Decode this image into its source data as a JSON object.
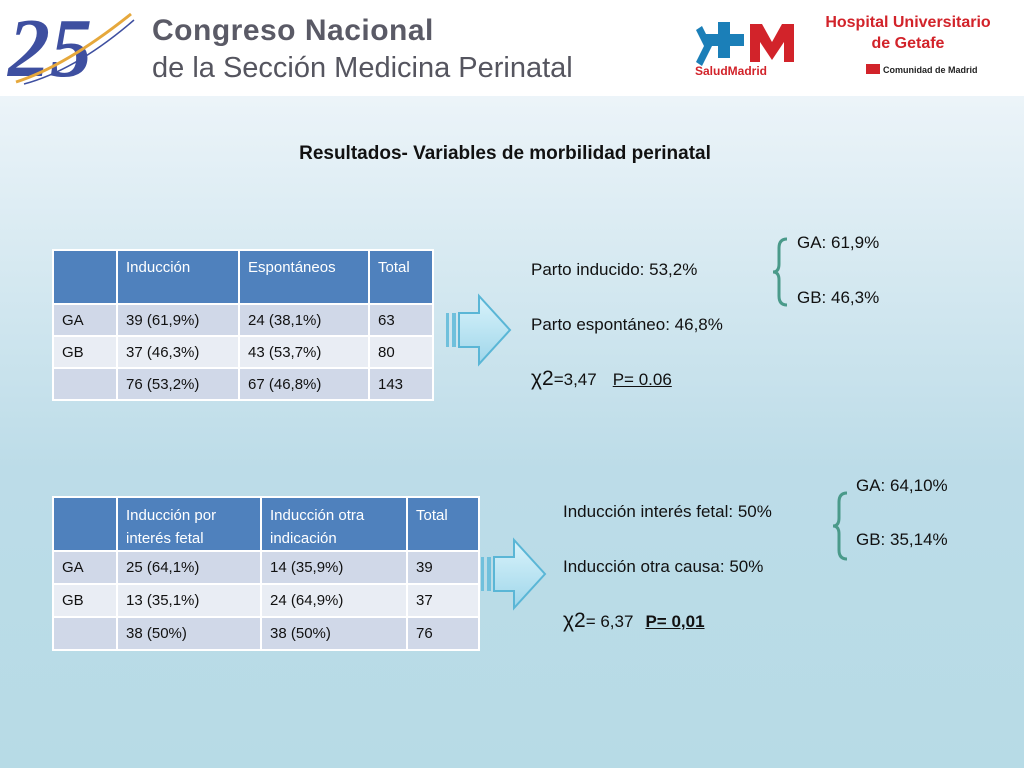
{
  "header": {
    "logo_number": "25",
    "congress_line1": "Congreso Nacional",
    "congress_line2": "de la Sección Medicina Perinatal",
    "salud_logo_text": "SaludMadrid",
    "hospital_line1": "Hospital Universitario",
    "hospital_line2": "de Getafe",
    "comunidad_text": "Comunidad de Madrid"
  },
  "title": "Resultados- Variables de morbilidad perinatal",
  "table1": {
    "headers": [
      "",
      "Inducción",
      "Espontáneos",
      "Total"
    ],
    "rows": [
      [
        "GA",
        "39 (61,9%)",
        "24 (38,1%)",
        "63"
      ],
      [
        "GB",
        "37 (46,3%)",
        "43 (53,7%)",
        "80"
      ],
      [
        "",
        "76 (53,2%)",
        "67 (46,8%)",
        "143"
      ]
    ]
  },
  "stats1": {
    "line1": "Parto inducido: 53,2%",
    "line2": "Parto espontáneo: 46,8%",
    "chi_symbol": "χ2",
    "chi_value": "=3,47",
    "p_value": "P= 0.06",
    "brace_top": "GA: 61,9%",
    "brace_bottom": "GB: 46,3%"
  },
  "table2": {
    "header_col1": "Inducción por interés fetal",
    "header_col2": "Inducción otra indicación",
    "header_col3": "Total",
    "rows": [
      [
        "GA",
        "25 (64,1%)",
        "14 (35,9%)",
        "39"
      ],
      [
        "GB",
        "13 (35,1%)",
        "24 (64,9%)",
        "37"
      ],
      [
        "",
        "38 (50%)",
        "38 (50%)",
        "76"
      ]
    ]
  },
  "stats2": {
    "line1": "Inducción interés fetal: 50%",
    "line2": "Inducción otra causa: 50%",
    "chi_symbol": "χ2",
    "chi_value": "= 6,37",
    "p_value": "P= 0,01",
    "brace_top": "GA: 64,10%",
    "brace_bottom": "GB: 35,14%"
  },
  "colors": {
    "header_blue": "#4f81bd",
    "row_odd": "#d0d8e8",
    "row_even": "#e9edf4",
    "brand_red": "#d2232a",
    "brace_green": "#4a9a8a"
  }
}
